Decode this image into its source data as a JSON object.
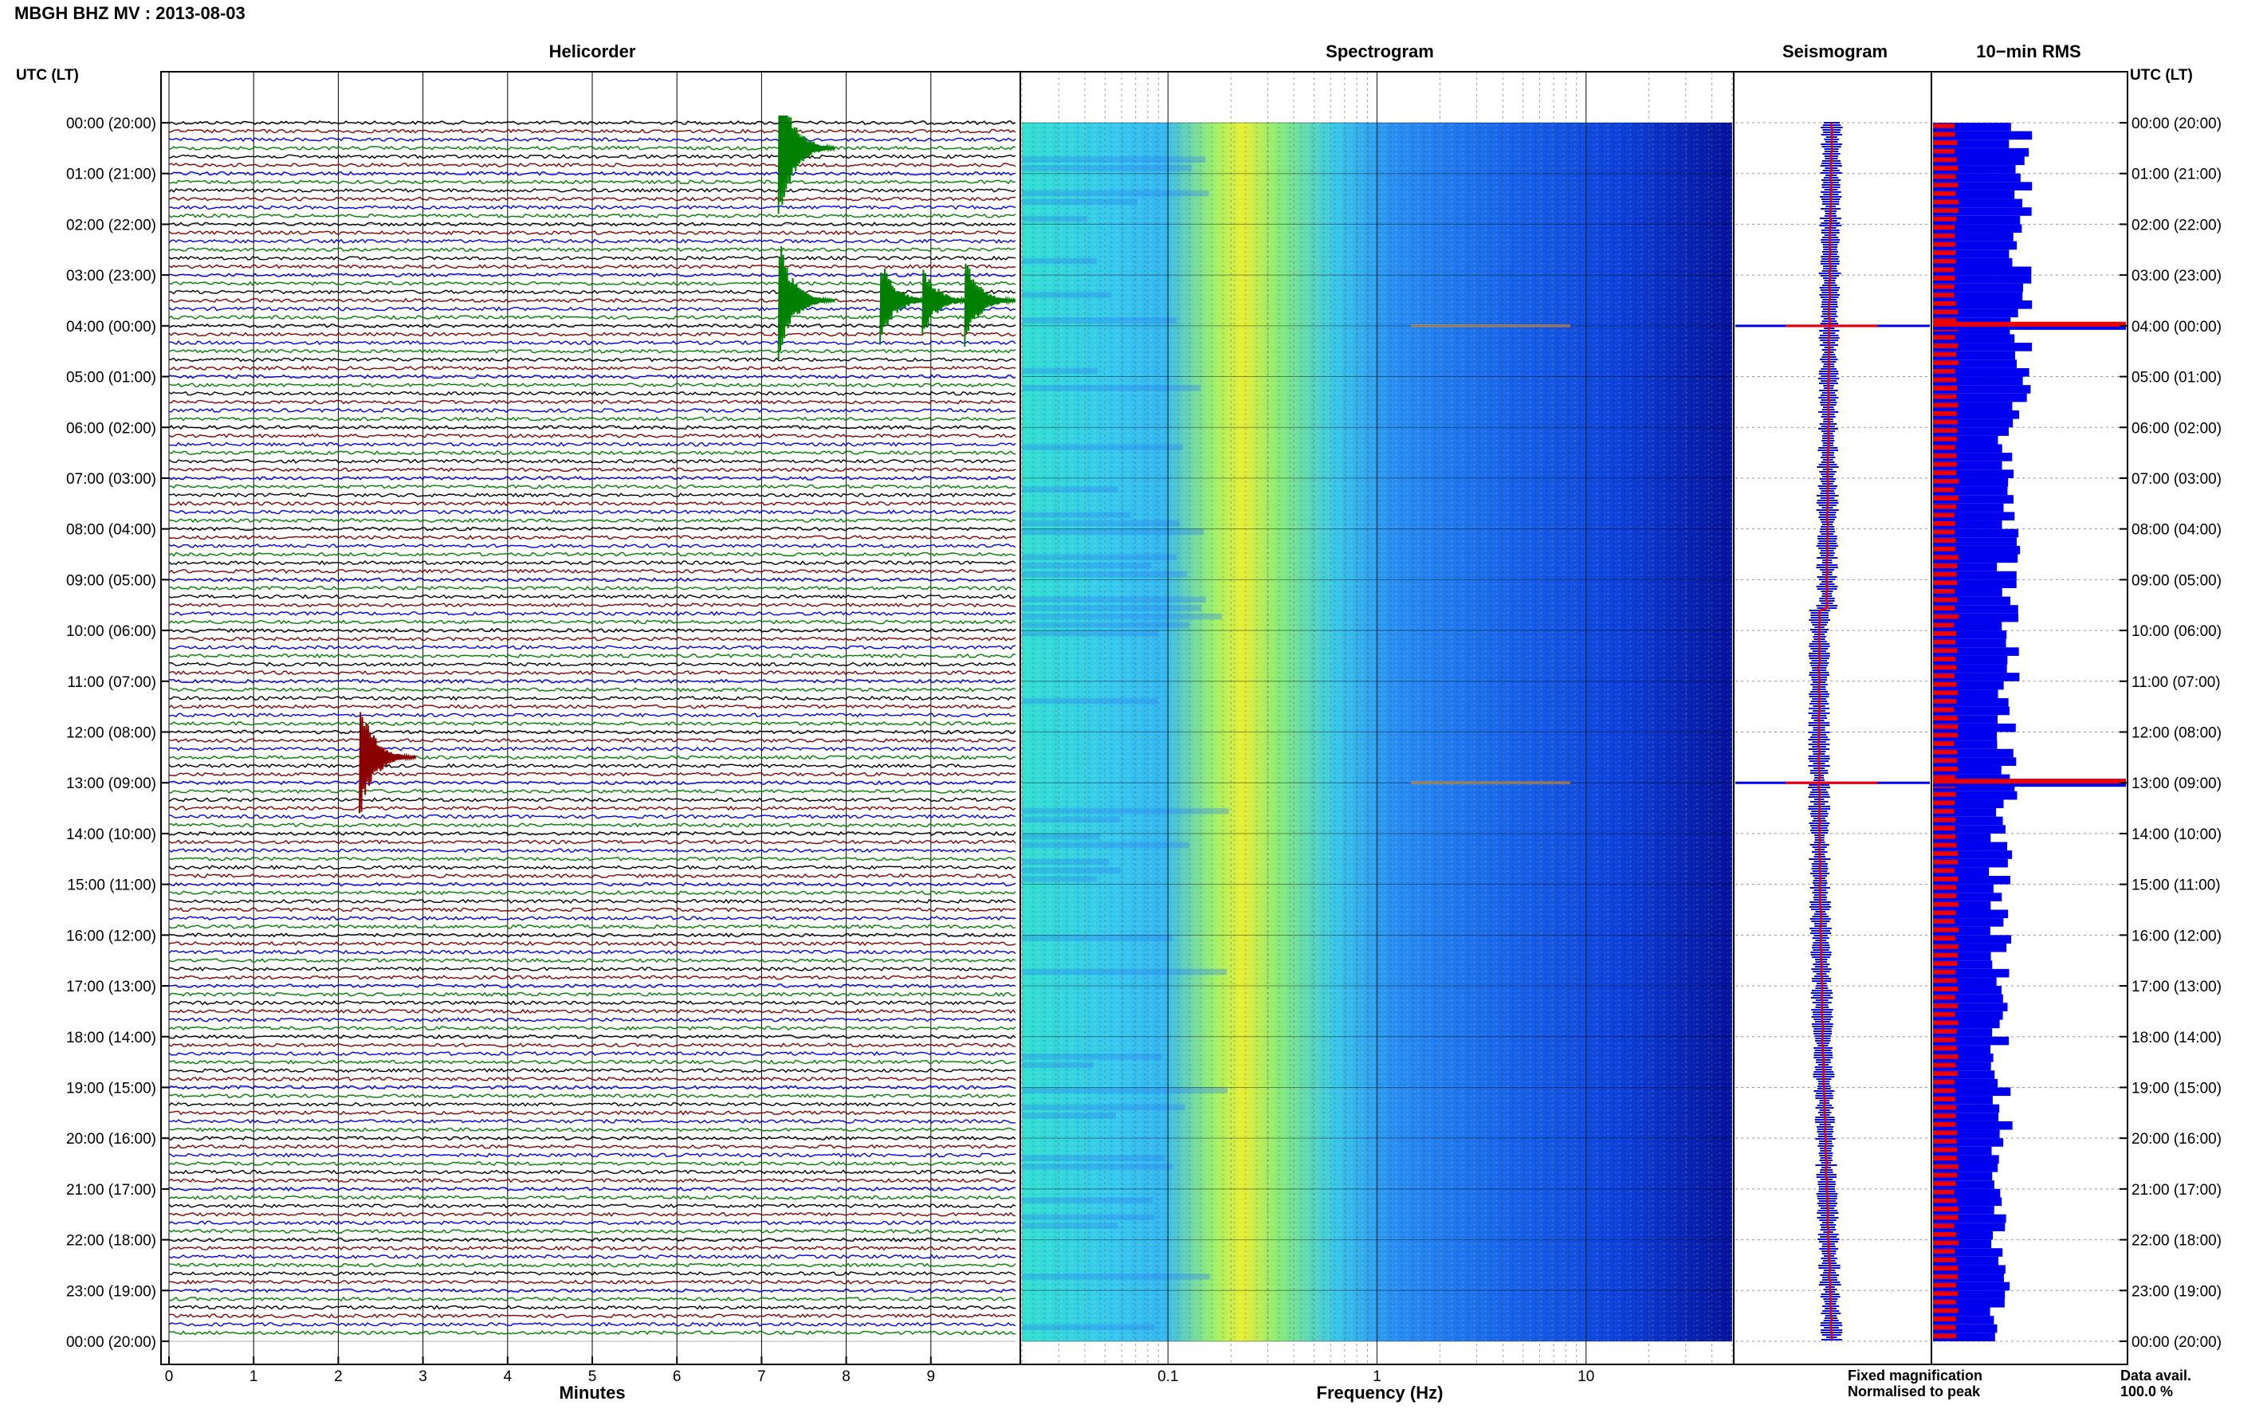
{
  "page": {
    "title": "MBGH BHZ MV : 2013-08-03",
    "left_axis_title": "UTC (LT)",
    "right_axis_title": "UTC (LT)",
    "data_avail_label": "Data avail.",
    "data_avail_value": "100.0 %"
  },
  "panels": {
    "helicorder": "Helicorder",
    "spectrogram": "Spectrogram",
    "seismogram": "Seismogram",
    "rms": "10−min RMS"
  },
  "legend": {
    "fixed": "Fixed magnification",
    "normalised": "Normalised to peak",
    "fixed_color": "#0000ee",
    "normalised_color": "#ee0000"
  },
  "chart_data": [
    {
      "type": "line",
      "name": "helicorder",
      "xlabel": "Minutes",
      "x_ticks": [
        "0",
        "1",
        "2",
        "3",
        "4",
        "5",
        "6",
        "7",
        "8",
        "9"
      ],
      "xlim": [
        0,
        10
      ],
      "time_labels": [
        "00:00 (20:00)",
        "01:00 (21:00)",
        "02:00 (22:00)",
        "03:00 (23:00)",
        "04:00 (00:00)",
        "05:00 (01:00)",
        "06:00 (02:00)",
        "07:00 (03:00)",
        "08:00 (04:00)",
        "09:00 (05:00)",
        "10:00 (06:00)",
        "11:00 (07:00)",
        "12:00 (08:00)",
        "13:00 (09:00)",
        "14:00 (10:00)",
        "15:00 (11:00)",
        "16:00 (12:00)",
        "17:00 (13:00)",
        "18:00 (14:00)",
        "19:00 (15:00)",
        "20:00 (16:00)",
        "21:00 (17:00)",
        "22:00 (18:00)",
        "23:00 (19:00)",
        "00:00 (20:00)"
      ],
      "trace_colors": [
        "#000000",
        "#8b0000",
        "#0000ff",
        "#008000"
      ],
      "traces_per_hour": 6,
      "events": [
        {
          "hour": 0.5,
          "minute": 7.2,
          "amplitude": 6.5,
          "color": "#008000"
        },
        {
          "hour": 3.5,
          "minute": 7.2,
          "amplitude": 5.0,
          "color": "#008000"
        },
        {
          "hour": 3.5,
          "minute": 8.4,
          "amplitude": 3.5,
          "color": "#008000"
        },
        {
          "hour": 3.5,
          "minute": 8.9,
          "amplitude": 3.0,
          "color": "#008000"
        },
        {
          "hour": 3.5,
          "minute": 9.4,
          "amplitude": 3.5,
          "color": "#008000"
        },
        {
          "hour": 12.5,
          "minute": 2.25,
          "amplitude": 5.0,
          "color": "#8b0000"
        }
      ]
    },
    {
      "type": "heatmap",
      "name": "spectrogram",
      "xlabel": "Frequency (Hz)",
      "x_scale": "log",
      "xlim": [
        0.02,
        50
      ],
      "x_ticks": [
        "0.1",
        "1",
        "10"
      ],
      "colormap": "jet",
      "rows": 144
    },
    {
      "type": "bar",
      "name": "seismogram",
      "series": [
        {
          "name": "Fixed magnification",
          "color": "#0000ee"
        },
        {
          "name": "Normalised to peak",
          "color": "#ee0000"
        }
      ],
      "peak_hours": [
        4.0,
        13.0
      ]
    },
    {
      "type": "bar",
      "name": "10-min RMS",
      "rows": 144,
      "peak_hours": [
        4.0,
        13.0
      ],
      "series": [
        {
          "name": "Fixed magnification",
          "color": "#0000ee"
        },
        {
          "name": "Normalised to peak",
          "color": "#ee0000"
        }
      ]
    }
  ]
}
